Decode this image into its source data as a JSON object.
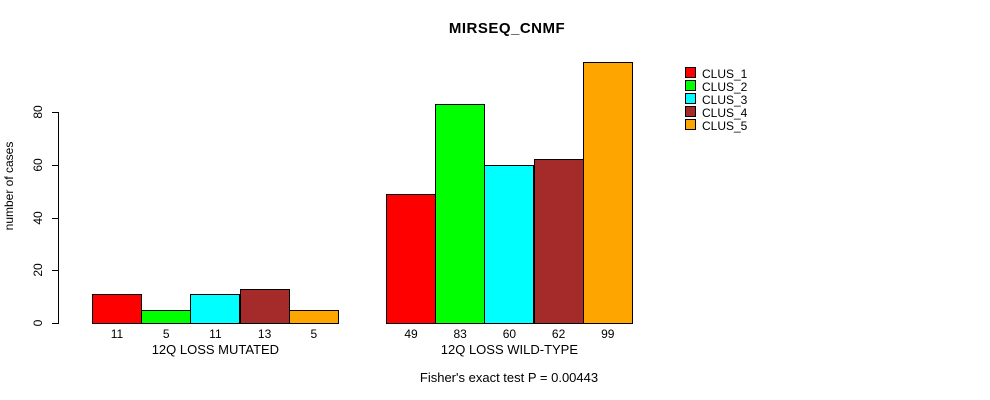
{
  "title": "MIRSEQ_CNMF",
  "footer": "Fisher's exact test P = 0.00443",
  "chart_data": {
    "type": "bar",
    "title": "MIRSEQ_CNMF",
    "xlabel": "",
    "ylabel": "number of cases",
    "ylim": [
      0,
      99
    ],
    "yticks": [
      0,
      20,
      40,
      60,
      80
    ],
    "grid": false,
    "legend_position": "right",
    "categories": [
      "12Q LOSS MUTATED",
      "12Q LOSS WILD-TYPE"
    ],
    "series": [
      {
        "name": "CLUS_1",
        "color": "#FF0000",
        "values": [
          11,
          49
        ]
      },
      {
        "name": "CLUS_2",
        "color": "#00FF00",
        "values": [
          5,
          83
        ]
      },
      {
        "name": "CLUS_3",
        "color": "#00FFFF",
        "values": [
          11,
          60
        ]
      },
      {
        "name": "CLUS_4",
        "color": "#A52A2A",
        "values": [
          13,
          62
        ]
      },
      {
        "name": "CLUS_5",
        "color": "#FFA500",
        "values": [
          5,
          99
        ]
      }
    ],
    "groups": [
      {
        "label": "12Q LOSS MUTATED",
        "values": [
          11,
          5,
          11,
          13,
          5
        ]
      },
      {
        "label": "12Q LOSS WILD-TYPE",
        "values": [
          49,
          83,
          60,
          62,
          99
        ]
      }
    ],
    "bar_value_labels": [
      [
        "11",
        "5",
        "11",
        "13",
        "5"
      ],
      [
        "49",
        "83",
        "60",
        "62",
        "99"
      ]
    ],
    "annotation": "Fisher's exact test P = 0.00443"
  },
  "legend": {
    "items": [
      {
        "label": "CLUS_1",
        "color": "#FF0000"
      },
      {
        "label": "CLUS_2",
        "color": "#00FF00"
      },
      {
        "label": "CLUS_3",
        "color": "#00FFFF"
      },
      {
        "label": "CLUS_4",
        "color": "#A52A2A"
      },
      {
        "label": "CLUS_5",
        "color": "#FFA500"
      }
    ]
  },
  "colors": {
    "background": "#FFFFFF",
    "axis": "#000000",
    "text": "#000000"
  }
}
